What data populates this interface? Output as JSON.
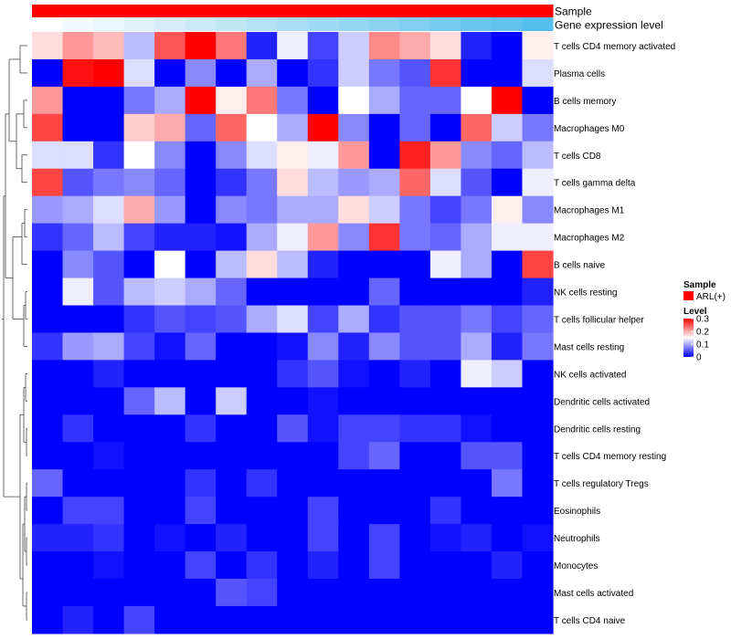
{
  "chart_data": {
    "type": "heatmap",
    "annotations": [
      {
        "label": "Sample",
        "color": "#ff0000"
      },
      {
        "label": "Gene expression level",
        "colors": [
          "#ffffff",
          "#f4fafd",
          "#eaf6fb",
          "#dff1fa",
          "#d5edf8",
          "#caeaf7",
          "#c0e6f6",
          "#b5e2f5",
          "#aadef4",
          "#a0daf3",
          "#95d6f2",
          "#8bd2f1",
          "#80cef0",
          "#76caef",
          "#6bc6ee",
          "#61c2ed",
          "#56beec"
        ]
      }
    ],
    "rows": [
      "T cells CD4 memory activated",
      "Plasma cells",
      "B cells memory",
      "Macrophages M0",
      "T cells CD8",
      "T cells gamma delta",
      "Macrophages M1",
      "Macrophages M2",
      "B cells naive",
      "NK cells resting",
      "T cells follicular helper",
      "Mast cells resting",
      "NK cells activated",
      "Dendritic cells activated",
      "Dendritic cells resting",
      "T cells CD4 memory resting",
      "T cells regulatory  Tregs",
      "Eosinophils",
      "Neutrophils",
      "Monocytes",
      "Mast cells activated",
      "T cells CD4 naive"
    ],
    "n_cols": 17,
    "values": [
      [
        0.17,
        0.21,
        0.19,
        0.11,
        0.25,
        0.3,
        0.23,
        0.02,
        0.14,
        0.04,
        0.12,
        0.22,
        0.2,
        0.17,
        0.02,
        0.0,
        0.16
      ],
      [
        0.0,
        0.29,
        0.3,
        0.13,
        0.0,
        0.08,
        0.0,
        0.1,
        0.0,
        0.03,
        0.12,
        0.07,
        0.05,
        0.27,
        0.0,
        0.0,
        0.13
      ],
      [
        0.21,
        0.0,
        0.0,
        0.07,
        0.1,
        0.3,
        0.16,
        0.23,
        0.07,
        0.0,
        0.15,
        0.1,
        0.06,
        0.06,
        0.15,
        0.3,
        0.0
      ],
      [
        0.26,
        0.0,
        0.0,
        0.18,
        0.2,
        0.06,
        0.24,
        0.15,
        0.1,
        0.3,
        0.08,
        0.0,
        0.06,
        0.0,
        0.24,
        0.12,
        0.07
      ],
      [
        0.13,
        0.13,
        0.03,
        0.15,
        0.08,
        0.0,
        0.08,
        0.13,
        0.16,
        0.14,
        0.21,
        0.0,
        0.28,
        0.21,
        0.08,
        0.06,
        0.11
      ],
      [
        0.26,
        0.05,
        0.07,
        0.08,
        0.06,
        0.0,
        0.03,
        0.07,
        0.17,
        0.11,
        0.09,
        0.1,
        0.24,
        0.13,
        0.05,
        0.0,
        0.14
      ],
      [
        0.09,
        0.1,
        0.13,
        0.2,
        0.09,
        0.0,
        0.08,
        0.07,
        0.1,
        0.1,
        0.17,
        0.12,
        0.07,
        0.04,
        0.07,
        0.16,
        0.08
      ],
      [
        0.03,
        0.06,
        0.11,
        0.04,
        0.02,
        0.02,
        0.01,
        0.1,
        0.14,
        0.21,
        0.08,
        0.27,
        0.07,
        0.06,
        0.1,
        0.14,
        0.14
      ],
      [
        0.0,
        0.08,
        0.05,
        0.0,
        0.15,
        0.0,
        0.11,
        0.17,
        0.11,
        0.02,
        0.0,
        0.0,
        0.0,
        0.14,
        0.1,
        0.0,
        0.26
      ],
      [
        0.0,
        0.14,
        0.05,
        0.11,
        0.12,
        0.1,
        0.06,
        0.0,
        0.0,
        0.0,
        0.0,
        0.06,
        0.0,
        0.0,
        0.0,
        0.0,
        0.02
      ],
      [
        0.0,
        0.0,
        0.0,
        0.03,
        0.05,
        0.04,
        0.05,
        0.1,
        0.13,
        0.04,
        0.1,
        0.03,
        0.05,
        0.05,
        0.07,
        0.04,
        0.06
      ],
      [
        0.03,
        0.09,
        0.1,
        0.04,
        0.01,
        0.06,
        0.0,
        0.0,
        0.01,
        0.08,
        0.02,
        0.08,
        0.05,
        0.05,
        0.1,
        0.02,
        0.07
      ],
      [
        0.0,
        0.0,
        0.02,
        0.0,
        0.0,
        0.0,
        0.0,
        0.0,
        0.03,
        0.05,
        0.01,
        0.0,
        0.02,
        0.0,
        0.14,
        0.12,
        0.0
      ],
      [
        0.0,
        0.0,
        0.0,
        0.06,
        0.11,
        0.0,
        0.12,
        0.0,
        0.0,
        0.01,
        0.0,
        0.0,
        0.0,
        0.0,
        0.0,
        0.0,
        0.0
      ],
      [
        0.0,
        0.03,
        0.0,
        0.0,
        0.0,
        0.03,
        0.0,
        0.0,
        0.05,
        0.01,
        0.04,
        0.04,
        0.03,
        0.03,
        0.01,
        0.0,
        0.0
      ],
      [
        0.0,
        0.0,
        0.01,
        0.0,
        0.0,
        0.0,
        0.0,
        0.0,
        0.0,
        0.0,
        0.04,
        0.06,
        0.0,
        0.0,
        0.05,
        0.05,
        0.0
      ],
      [
        0.06,
        0.0,
        0.0,
        0.0,
        0.0,
        0.03,
        0.0,
        0.03,
        0.0,
        0.0,
        0.0,
        0.0,
        0.0,
        0.0,
        0.0,
        0.07,
        0.0
      ],
      [
        0.0,
        0.04,
        0.04,
        0.0,
        0.0,
        0.04,
        0.0,
        0.0,
        0.0,
        0.04,
        0.0,
        0.0,
        0.0,
        0.03,
        0.0,
        0.0,
        0.0
      ],
      [
        0.02,
        0.02,
        0.03,
        0.0,
        0.01,
        0.0,
        0.02,
        0.0,
        0.0,
        0.04,
        0.0,
        0.04,
        0.0,
        0.01,
        0.02,
        0.0,
        0.01
      ],
      [
        0.0,
        0.0,
        0.01,
        0.0,
        0.0,
        0.04,
        0.0,
        0.03,
        0.0,
        0.02,
        0.0,
        0.04,
        0.0,
        0.0,
        0.0,
        0.02,
        0.0
      ],
      [
        0.0,
        0.0,
        0.0,
        0.0,
        0.0,
        0.0,
        0.05,
        0.04,
        0.0,
        0.0,
        0.0,
        0.0,
        0.0,
        0.0,
        0.0,
        0.0,
        0.0
      ],
      [
        0.0,
        0.02,
        0.0,
        0.04,
        0.0,
        0.0,
        0.0,
        0.0,
        0.0,
        0.0,
        0.0,
        0.0,
        0.0,
        0.0,
        0.0,
        0.0,
        0.0
      ]
    ],
    "color_scale": {
      "low": "#0000ff",
      "mid": "#ffffff",
      "high": "#ff0000",
      "min": 0,
      "mid_value": 0.15,
      "max": 0.3
    },
    "legend": {
      "sample_title": "Sample",
      "sample_entry": "ARL(+)",
      "sample_color": "#ff0000",
      "level_title": "Level",
      "ticks": [
        0.3,
        0.2,
        0.1,
        0
      ],
      "tick_labels": [
        "0.3",
        "0.2",
        "0.1",
        "0"
      ]
    },
    "dendrogram": "rows clustered (left side)"
  }
}
